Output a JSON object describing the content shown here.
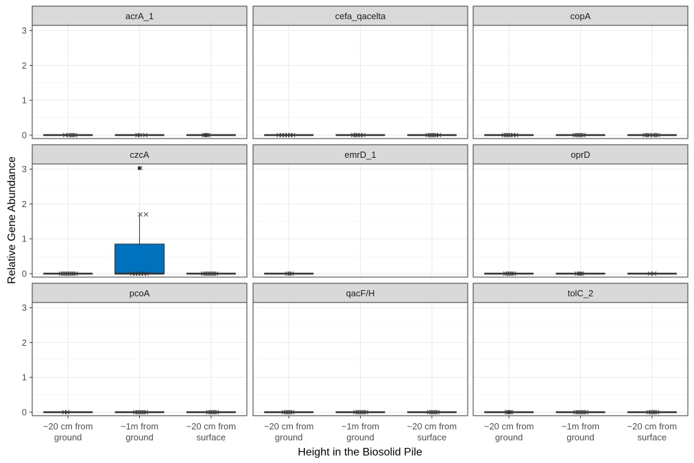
{
  "chart_data": {
    "type": "boxplot",
    "layout": "facet_wrap 3x3, shared axes",
    "xlabel": "Height in the Biosolid Pile",
    "ylabel": "Relative Gene Abundance",
    "categories": [
      "~20 cm from ground",
      "~1m from ground",
      "~20 cm from surface"
    ],
    "ylim": [
      -0.1,
      3.15
    ],
    "yticks": [
      0,
      1,
      2,
      3
    ],
    "grid": true,
    "box_color": "#0072BD",
    "facets": [
      {
        "gene": "acrA_1",
        "boxes": [
          {
            "category": "~20 cm from ground",
            "q1": 0,
            "median": 0,
            "q3": 0,
            "lo": 0,
            "hi": 0,
            "jitter": [
              -0.08,
              0.02,
              0.08,
              0.14,
              0.2
            ]
          },
          {
            "category": "~1m from ground",
            "q1": 0,
            "median": 0,
            "q3": 0,
            "lo": 0,
            "hi": 0,
            "jitter": [
              -0.06,
              0.0,
              0.16
            ]
          },
          {
            "category": "~20 cm from surface",
            "q1": 0,
            "median": 0,
            "q3": 0,
            "lo": 0,
            "hi": 0,
            "jitter": [
              -0.2,
              -0.16,
              -0.12,
              -0.08
            ]
          }
        ]
      },
      {
        "gene": "cefa_qacelta",
        "boxes": [
          {
            "category": "~20 cm from ground",
            "q1": 0,
            "median": 0,
            "q3": 0,
            "lo": 0,
            "hi": 0,
            "jitter": [
              -0.28,
              -0.2,
              -0.12,
              -0.04,
              0.04,
              0.12
            ]
          },
          {
            "category": "~1m from ground",
            "q1": 0,
            "median": 0,
            "q3": 0,
            "lo": 0,
            "hi": 0,
            "jitter": [
              -0.2,
              -0.14,
              -0.08,
              0.0,
              0.08
            ]
          },
          {
            "category": "~20 cm from surface",
            "q1": 0,
            "median": 0,
            "q3": 0,
            "lo": 0,
            "hi": 0,
            "jitter": [
              -0.12,
              -0.06,
              0.0,
              0.06,
              0.12,
              0.2
            ]
          }
        ]
      },
      {
        "gene": "copA",
        "boxes": [
          {
            "category": "~20 cm from ground",
            "q1": 0,
            "median": 0,
            "q3": 0,
            "lo": 0,
            "hi": 0,
            "jitter": [
              -0.14,
              -0.08,
              -0.02,
              0.04,
              0.12,
              0.2
            ]
          },
          {
            "category": "~1m from ground",
            "q1": 0,
            "median": 0,
            "q3": 0,
            "lo": 0,
            "hi": 0,
            "jitter": [
              -0.16,
              -0.1,
              -0.04,
              0.02,
              0.08
            ]
          },
          {
            "category": "~20 cm from surface",
            "q1": 0,
            "median": 0,
            "q3": 0,
            "lo": 0,
            "hi": 0,
            "jitter": [
              -0.2,
              -0.14,
              -0.08,
              0.04,
              0.1,
              0.16
            ]
          }
        ]
      },
      {
        "gene": "czcA",
        "boxes": [
          {
            "category": "~20 cm from ground",
            "q1": 0,
            "median": 0,
            "q3": 0,
            "lo": 0,
            "hi": 0,
            "jitter": [
              -0.2,
              -0.14,
              -0.08,
              -0.02,
              0.04,
              0.1,
              0.16,
              0.22
            ]
          },
          {
            "category": "~1m from ground",
            "q1": 0,
            "median": 0,
            "q3": 0.85,
            "lo": 0,
            "hi": 1.7,
            "outliers": [
              3.03
            ],
            "jitter": [
              -0.2,
              -0.12,
              -0.04,
              0.04,
              0.12,
              0.2
            ],
            "high_points": [
              {
                "dx": 0.02,
                "y": 1.7
              },
              {
                "dx": 0.18,
                "y": 1.7
              },
              {
                "dx": 0.02,
                "y": 3.03
              }
            ]
          },
          {
            "category": "~20 cm from surface",
            "q1": 0,
            "median": 0,
            "q3": 0,
            "lo": 0,
            "hi": 0,
            "jitter": [
              -0.22,
              -0.16,
              -0.1,
              -0.04,
              0.02,
              0.08,
              0.14
            ]
          }
        ]
      },
      {
        "gene": "emrD_1",
        "boxes": [
          {
            "category": "~20 cm from ground",
            "q1": 0,
            "median": 0,
            "q3": 0,
            "lo": 0,
            "hi": 0,
            "jitter": [
              -0.04,
              0.02,
              0.08
            ]
          }
        ]
      },
      {
        "gene": "oprD",
        "boxes": [
          {
            "category": "~20 cm from ground",
            "q1": 0,
            "median": 0,
            "q3": 0,
            "lo": 0,
            "hi": 0,
            "jitter": [
              -0.1,
              -0.04,
              0.02,
              0.08,
              0.14
            ]
          },
          {
            "category": "~1m from ground",
            "q1": 0,
            "median": 0,
            "q3": 0,
            "lo": 0,
            "hi": 0,
            "jitter": [
              -0.1,
              -0.04,
              0.0,
              0.04
            ]
          },
          {
            "category": "~20 cm from surface",
            "q1": 0,
            "median": 0,
            "q3": 0,
            "lo": 0,
            "hi": 0,
            "jitter": [
              -0.06,
              0.06
            ]
          }
        ]
      },
      {
        "gene": "pcoA",
        "boxes": [
          {
            "category": "~20 cm from ground",
            "q1": 0,
            "median": 0,
            "q3": 0,
            "lo": 0,
            "hi": 0,
            "jitter": [
              -0.1,
              -0.02
            ]
          },
          {
            "category": "~1m from ground",
            "q1": 0,
            "median": 0,
            "q3": 0,
            "lo": 0,
            "hi": 0,
            "jitter": [
              -0.12,
              -0.06,
              0.0,
              0.06,
              0.12,
              0.18
            ]
          },
          {
            "category": "~20 cm from surface",
            "q1": 0,
            "median": 0,
            "q3": 0,
            "lo": 0,
            "hi": 0,
            "jitter": [
              -0.08,
              -0.02,
              0.04,
              0.1,
              0.16
            ]
          }
        ]
      },
      {
        "gene": "qacF/H",
        "boxes": [
          {
            "category": "~20 cm from ground",
            "q1": 0,
            "median": 0,
            "q3": 0,
            "lo": 0,
            "hi": 0,
            "jitter": [
              -0.14,
              -0.08,
              -0.02,
              0.04,
              0.1
            ]
          },
          {
            "category": "~1m from ground",
            "q1": 0,
            "median": 0,
            "q3": 0,
            "lo": 0,
            "hi": 0,
            "jitter": [
              -0.14,
              -0.08,
              -0.02,
              0.04,
              0.1,
              0.16
            ]
          },
          {
            "category": "~20 cm from surface",
            "q1": 0,
            "median": 0,
            "q3": 0,
            "lo": 0,
            "hi": 0,
            "jitter": [
              -0.08,
              -0.02,
              0.04,
              0.1,
              0.16
            ]
          }
        ]
      },
      {
        "gene": "tolC_2",
        "boxes": [
          {
            "category": "~20 cm from ground",
            "q1": 0,
            "median": 0,
            "q3": 0,
            "lo": 0,
            "hi": 0,
            "jitter": [
              -0.06,
              -0.02,
              0.02,
              0.06
            ]
          },
          {
            "category": "~1m from ground",
            "q1": 0,
            "median": 0,
            "q3": 0,
            "lo": 0,
            "hi": 0,
            "jitter": [
              -0.14,
              -0.08,
              -0.02,
              0.04,
              0.1,
              0.16
            ]
          },
          {
            "category": "~20 cm from surface",
            "q1": 0,
            "median": 0,
            "q3": 0,
            "lo": 0,
            "hi": 0,
            "jitter": [
              -0.1,
              -0.04,
              0.02,
              0.08,
              0.14
            ]
          }
        ]
      }
    ]
  }
}
